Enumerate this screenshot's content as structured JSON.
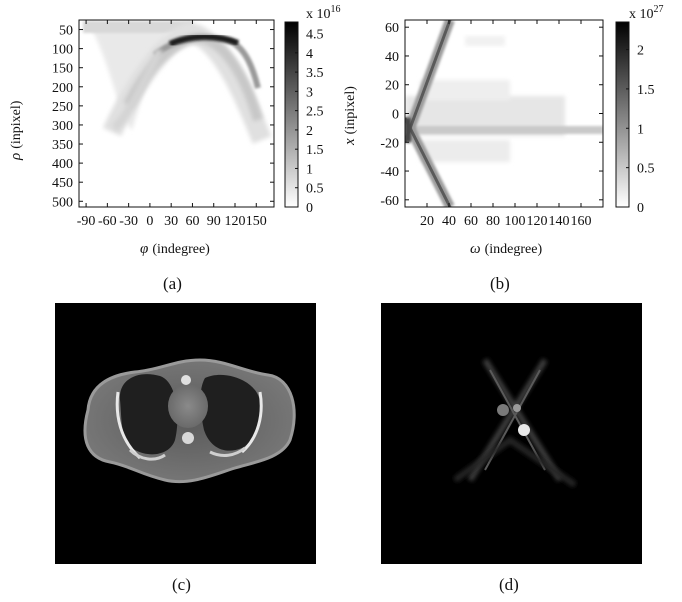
{
  "chart_data": [
    {
      "panel": "(a)",
      "type": "heatmap",
      "xlabel_symbol": "φ",
      "xlabel_unit": "(indegree)",
      "ylabel_symbol": "ρ",
      "ylabel_unit": "(inpixel)",
      "x_ticks": [
        "-90",
        "-60",
        "-30",
        "0",
        "30",
        "60",
        "90",
        "120",
        "150"
      ],
      "y_ticks": [
        "50",
        "100",
        "150",
        "200",
        "250",
        "300",
        "350",
        "400",
        "450",
        "500"
      ],
      "xlim": [
        -100,
        175
      ],
      "ylim": [
        515,
        25
      ],
      "colorbar": {
        "multiplier_base": "x 10",
        "multiplier_exp": "16",
        "ticks": [
          "0",
          "0.5",
          "1",
          "1.5",
          "2",
          "2.5",
          "3",
          "3.5",
          "4",
          "4.5"
        ],
        "range": [
          0,
          4.8
        ],
        "colormap": "white-to-black"
      }
    },
    {
      "panel": "(b)",
      "type": "heatmap",
      "xlabel_symbol": "ω",
      "xlabel_unit": "(indegree)",
      "ylabel_symbol": "x",
      "ylabel_unit": "(inpixel)",
      "x_ticks": [
        "20",
        "40",
        "60",
        "80",
        "100",
        "120",
        "140",
        "160"
      ],
      "y_ticks": [
        "-60",
        "-40",
        "-20",
        "0",
        "20",
        "40",
        "60"
      ],
      "xlim": [
        0,
        180
      ],
      "ylim": [
        -65,
        65
      ],
      "colorbar": {
        "multiplier_base": "x 10",
        "multiplier_exp": "27",
        "ticks": [
          "0",
          "0.5",
          "1",
          "1.5",
          "2"
        ],
        "range": [
          0,
          2.35
        ],
        "colormap": "white-to-black"
      }
    },
    {
      "panel": "(c)",
      "type": "image"
    },
    {
      "panel": "(d)",
      "type": "image"
    }
  ],
  "captions": [
    "(a)",
    "(b)",
    "(c)",
    "(d)"
  ],
  "colors": {
    "background": "#ffffff",
    "image_background": "#000000",
    "ink": "#111111"
  }
}
